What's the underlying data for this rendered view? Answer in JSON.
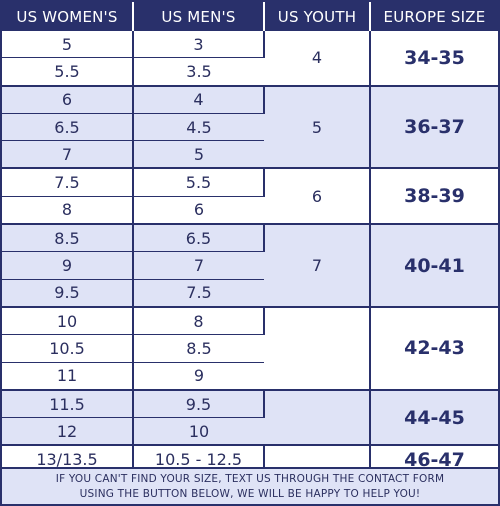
{
  "headers": [
    "US WOMEN'S",
    "US MEN'S",
    "US YOUTH",
    "EUROPE SIZE"
  ],
  "groups": [
    {
      "youth": "4",
      "europe": "34-35",
      "rows": [
        [
          "5",
          "3"
        ],
        [
          "5.5",
          "3.5"
        ]
      ]
    },
    {
      "youth": "5",
      "europe": "36-37",
      "rows": [
        [
          "6",
          "4"
        ],
        [
          "6.5",
          "4.5"
        ],
        [
          "7",
          "5"
        ]
      ]
    },
    {
      "youth": "6",
      "europe": "38-39",
      "rows": [
        [
          "7.5",
          "5.5"
        ],
        [
          "8",
          "6"
        ]
      ]
    },
    {
      "youth": "7",
      "europe": "40-41",
      "rows": [
        [
          "8.5",
          "6.5"
        ],
        [
          "9",
          "7"
        ],
        [
          "9.5",
          "7.5"
        ]
      ]
    },
    {
      "youth": "",
      "europe": "42-43",
      "rows": [
        [
          "10",
          "8"
        ],
        [
          "10.5",
          "8.5"
        ],
        [
          "11",
          "9"
        ]
      ]
    },
    {
      "youth": "",
      "europe": "44-45",
      "rows": [
        [
          "11.5",
          "9.5"
        ],
        [
          "12",
          "10"
        ]
      ]
    },
    {
      "youth": "",
      "europe": "46-47",
      "rows": [
        [
          "13/13.5",
          "10.5 - 12.5"
        ]
      ]
    }
  ],
  "footer": {
    "line1": "IF YOU CAN'T FIND YOUR SIZE, TEXT US THROUGH THE CONTACT FORM",
    "line2": "USING THE BUTTON BELOW, WE WILL BE HAPPY TO HELP YOU!"
  },
  "colors": {
    "header_bg": "#29306b",
    "shade": "#dfe3f6",
    "text": "#2b2f5f"
  }
}
